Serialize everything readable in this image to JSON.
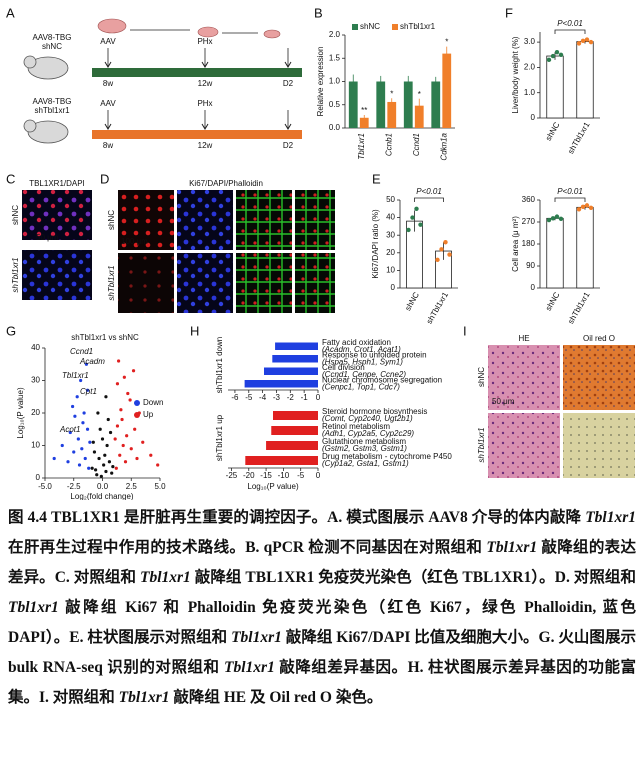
{
  "panel_a": {
    "label": "A",
    "group_top": [
      "AAV8-TBG",
      "shNC"
    ],
    "group_bottom": [
      "AAV8-TBG",
      "shTbl1xr1"
    ],
    "steps": [
      "AAV",
      "PHx"
    ],
    "times": [
      "8w",
      "12w",
      "D2"
    ],
    "colors": [
      "#2e6b3a",
      "#e8742a"
    ]
  },
  "panel_b": {
    "label": "B",
    "y_label": "Relative expression",
    "categories": [
      "Tbl1xr1",
      "Ccnb1",
      "Ccnd1",
      "Cdkn1a"
    ],
    "series": [
      {
        "name": "shNC",
        "color": "#2e7d4f",
        "values": [
          1,
          1,
          1,
          1
        ],
        "errors": [
          0.15,
          0.12,
          0.12,
          0.1
        ]
      },
      {
        "name": "shTbl1xr1",
        "color": "#f07f2a",
        "values": [
          0.22,
          0.56,
          0.48,
          1.6
        ],
        "errors": [
          0.06,
          0.08,
          0.15,
          0.15
        ]
      }
    ],
    "significance": [
      "**",
      "*",
      "*",
      "*"
    ],
    "ylim": [
      0,
      2
    ],
    "yticks": [
      {
        "value": 0,
        "label": "0.0"
      },
      {
        "value": 0.5,
        "label": "0.5"
      },
      {
        "value": 1,
        "label": "1.0"
      },
      {
        "value": 1.5,
        "label": "1.5"
      },
      {
        "value": 2,
        "label": "2.0"
      }
    ]
  },
  "panel_f": {
    "label": "F",
    "y_label": "Liver/body weight (%)",
    "p_label": "P<0.01",
    "categories": [
      "shNC",
      "shTbl1xr1"
    ],
    "colors": [
      "#2e7d4f",
      "#f07f2a"
    ],
    "values": [
      2.45,
      3.02
    ],
    "errors": [
      0.15,
      0.08
    ],
    "points": [
      [
        2.3,
        2.45,
        2.6,
        2.5
      ],
      [
        2.95,
        3.05,
        3.1,
        3.0
      ]
    ],
    "ylim": [
      0,
      3.4
    ],
    "yticks": [
      0,
      {
        "value": 1,
        "label": "1.0"
      },
      {
        "value": 2,
        "label": "2.0"
      },
      {
        "value": 3,
        "label": "3.0"
      }
    ]
  },
  "panel_e": {
    "label": "E",
    "ki67": {
      "y_label": "Ki67/DAPI ratio (%)",
      "p_label": "P<0.01",
      "categories": [
        "shNC",
        "shTbl1xr1"
      ],
      "colors": [
        "#2e7d4f",
        "#f07f2a"
      ],
      "values": [
        38,
        21
      ],
      "errors": [
        6,
        5
      ],
      "points": [
        [
          33,
          40,
          45,
          36
        ],
        [
          16,
          22,
          26,
          19
        ]
      ],
      "ylim": [
        0,
        50
      ],
      "yticks": [
        0,
        10,
        20,
        30,
        40,
        50
      ]
    },
    "area": {
      "y_label": "Cell area (μ m²)",
      "p_label": "P<0.01",
      "categories": [
        "shNC",
        "shTbl1xr1"
      ],
      "colors": [
        "#2e7d4f",
        "#f07f2a"
      ],
      "values": [
        285,
        330
      ],
      "errors": [
        8,
        10
      ],
      "points": [
        [
          278,
          285,
          292,
          283
        ],
        [
          322,
          332,
          338,
          328
        ]
      ],
      "ylim": [
        0,
        360
      ],
      "yticks": [
        0,
        90,
        180,
        270,
        360
      ]
    }
  },
  "panel_c": {
    "label": "C",
    "title": "TBL1XR1/DAPI",
    "rows": [
      "shNC",
      "shTbl1xr1"
    ],
    "scale": "50 μm"
  },
  "panel_d": {
    "label": "D",
    "title": "Ki67/DAPI/Phalloidin",
    "rows": [
      "shNC",
      "shTbl1xr1"
    ],
    "scale": "100 μm"
  },
  "panel_g": {
    "label": "G",
    "title": "shTbl1xr1 vs shNC",
    "x_label": "Log₂(fold change)",
    "y_label": "Log₁₀(P value)",
    "legend": [
      "Down",
      "Up"
    ],
    "colors": [
      "#1f3fe0",
      "#e02020",
      "#111111"
    ],
    "genes": [
      "Ccnd1",
      "Acadm",
      "Tbl1xr1",
      "Cpt1",
      "Acot1"
    ],
    "xlim": [
      -5,
      5
    ],
    "xticks": [
      {
        "value": -5,
        "label": "-5.0"
      },
      {
        "value": -2.5,
        "label": "-2.5"
      },
      {
        "value": 0,
        "label": "0.0"
      },
      {
        "value": 2.5,
        "label": "2.5"
      },
      {
        "value": 5,
        "label": "5.0"
      }
    ],
    "ylim": [
      0,
      40
    ],
    "yticks": [
      0,
      10,
      20,
      30,
      40
    ],
    "down": [
      [
        -1.2,
        3
      ],
      [
        -1.5,
        6
      ],
      [
        -1.8,
        9
      ],
      [
        -2.1,
        12
      ],
      [
        -1.3,
        15
      ],
      [
        -2.5,
        8
      ],
      [
        -3.0,
        5
      ],
      [
        -1.6,
        20
      ],
      [
        -2.2,
        25
      ],
      [
        -1.9,
        30
      ],
      [
        -1.4,
        35
      ],
      [
        -2.8,
        14
      ],
      [
        -3.5,
        10
      ],
      [
        -1.1,
        11
      ],
      [
        -2.0,
        4
      ],
      [
        -4.2,
        6
      ],
      [
        -1.7,
        17
      ],
      [
        -2.4,
        19
      ],
      [
        -1.3,
        27
      ],
      [
        -2.6,
        22
      ]
    ],
    "up": [
      [
        1.2,
        3
      ],
      [
        1.5,
        7
      ],
      [
        1.8,
        10
      ],
      [
        2.1,
        13
      ],
      [
        1.3,
        16
      ],
      [
        2.5,
        9
      ],
      [
        3.0,
        6
      ],
      [
        1.6,
        21
      ],
      [
        2.2,
        26
      ],
      [
        1.9,
        31
      ],
      [
        1.4,
        36
      ],
      [
        2.8,
        15
      ],
      [
        3.5,
        11
      ],
      [
        1.1,
        12
      ],
      [
        2.0,
        5
      ],
      [
        4.2,
        7
      ],
      [
        1.7,
        18
      ],
      [
        2.4,
        24
      ],
      [
        1.3,
        29
      ],
      [
        3.2,
        20
      ],
      [
        4.8,
        4
      ],
      [
        2.7,
        33
      ]
    ],
    "ns": [
      [
        -0.5,
        1
      ],
      [
        0.3,
        2
      ],
      [
        0.8,
        1.5
      ],
      [
        -0.9,
        3
      ],
      [
        0.1,
        4
      ],
      [
        -0.3,
        6
      ],
      [
        0.6,
        5
      ],
      [
        -0.7,
        8
      ],
      [
        0.4,
        10
      ],
      [
        0,
        12
      ],
      [
        -0.2,
        15
      ],
      [
        0.5,
        18
      ],
      [
        -0.6,
        2.5
      ],
      [
        0.9,
        3.5
      ],
      [
        -0.1,
        0.5
      ],
      [
        0.2,
        7
      ],
      [
        -0.4,
        20
      ],
      [
        0.7,
        14
      ],
      [
        -0.8,
        11
      ],
      [
        0.3,
        25
      ]
    ]
  },
  "panel_h": {
    "label": "H",
    "x_label": "Log₁₀(P value)",
    "down": {
      "name": "shTbl1xr1 down",
      "color": "#1f3fe0",
      "terms": [
        "Fatty acid oxidation",
        "Response to unfolded protein",
        "Cell division",
        "Nuclear chromosome segregation"
      ],
      "genes": [
        "(Acadm, Crot1, Acat1)",
        "(Hspa5, Hsph1, Sym1)",
        "(Ccnd1, Cenpe, Ccne2)",
        "(Cenpc1, Top1, Cdc7)"
      ],
      "values": [
        -3.1,
        -3.3,
        -3.9,
        -5.3
      ],
      "xlim": [
        -6.5,
        0
      ],
      "xticks": [
        -6,
        -5,
        -4,
        -3,
        -2,
        -1,
        0
      ]
    },
    "up": {
      "name": "shTbl1xr1 up",
      "color": "#e02020",
      "terms": [
        "Steroid hormone biosynthesis",
        "Retinol metabolism",
        "Glutathione metabolism",
        "Drug metabolism - cytochrome P450"
      ],
      "genes": [
        "(Comt, Cyp2c40, Ugt2b1)",
        "(Adh1, Cyp2a5, Cyp2c29)",
        "(Gstm2, Gstm3, Gstm1)",
        "(Cyp1a2, Gsta1, Gstm1)"
      ],
      "values": [
        -13,
        -13.5,
        -15,
        -21
      ],
      "xlim": [
        -26,
        0
      ],
      "xticks": [
        -25,
        -20,
        -15,
        -10,
        -5,
        0
      ]
    }
  },
  "panel_i": {
    "label": "I",
    "columns": [
      "HE",
      "Oil red O"
    ],
    "rows": [
      "shNC",
      "shTbl1xr1"
    ],
    "scale": "50 μm"
  },
  "caption": [
    "图 4.4 TBL1XR1 是肝脏再生重要的调控因子。A. 模式图展示 AAV8 介导的体内敲降 ",
    "Tbl1xr1",
    " 在肝再生过程中作用的技术路线。B. qPCR 检测不同基因在对照组和 ",
    "Tbl1xr1",
    " 敲降组的表达差异。C. 对照组和 ",
    "Tbl1xr1",
    " 敲降组 TBL1XR1 免疫荧光染色（红色 TBL1XR1）。D. 对照组和 ",
    "Tbl1xr1",
    " 敲降组 Ki67 和 Phalloidin 免疫荧光染色（红色 Ki67，绿色 Phalloidin, 蓝色 DAPI）。E. 柱状图展示对照组和 ",
    "Tbl1xr1",
    " 敲降组 Ki67/DAPI 比值及细胞大小。G. 火山图展示 bulk RNA-seq 识别的对照组和 ",
    "Tbl1xr1",
    " 敲降组差异基因。H. 柱状图展示差异基因的功能富集。I. 对照组和 ",
    "Tbl1xr1",
    " 敲降组 HE 及 Oil red O 染色。"
  ]
}
